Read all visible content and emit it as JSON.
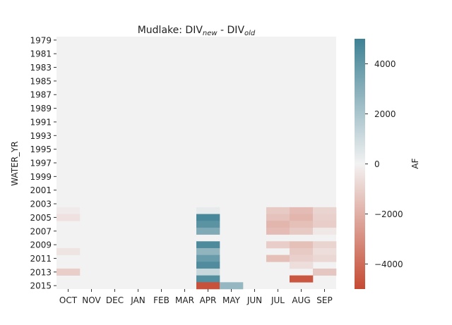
{
  "chart_data": {
    "type": "heatmap",
    "title": {
      "prefix": "Mudlake: DIV",
      "sub1": "new",
      "middle": " - DIV",
      "sub2": "old"
    },
    "xlabel": "",
    "ylabel": "WATER_YR",
    "colorbar_label": "AF",
    "color_range": [
      -5000,
      5000
    ],
    "colorbar_ticks": [
      4000,
      2000,
      0,
      -2000,
      -4000
    ],
    "colorbar_tick_labels": [
      "4000",
      "2000",
      "0",
      "−2000",
      "−4000"
    ],
    "colors": {
      "negative": "#c54a32",
      "neutral": "#f2f2f2",
      "positive": "#3e8194",
      "background": "#f2f2f2"
    },
    "x_categories": [
      "OCT",
      "NOV",
      "DEC",
      "JAN",
      "FEB",
      "MAR",
      "APR",
      "MAY",
      "JUN",
      "JUL",
      "AUG",
      "SEP"
    ],
    "y_categories": [
      1979,
      1980,
      1981,
      1982,
      1983,
      1984,
      1985,
      1986,
      1987,
      1988,
      1989,
      1990,
      1991,
      1992,
      1993,
      1994,
      1995,
      1996,
      1997,
      1998,
      1999,
      2000,
      2001,
      2002,
      2003,
      2004,
      2005,
      2006,
      2007,
      2008,
      2009,
      2010,
      2011,
      2012,
      2013,
      2014,
      2015
    ],
    "y_tick_labels": [
      "1979",
      "1981",
      "1983",
      "1985",
      "1987",
      "1989",
      "1991",
      "1993",
      "1995",
      "1997",
      "1999",
      "2001",
      "2003",
      "2005",
      "2007",
      "2009",
      "2011",
      "2013",
      "2015"
    ],
    "values": [
      [
        0,
        0,
        0,
        0,
        0,
        0,
        0,
        0,
        0,
        0,
        0,
        0
      ],
      [
        0,
        0,
        0,
        0,
        0,
        0,
        0,
        0,
        0,
        0,
        0,
        0
      ],
      [
        0,
        0,
        0,
        0,
        0,
        0,
        0,
        0,
        0,
        0,
        0,
        0
      ],
      [
        0,
        0,
        0,
        0,
        0,
        0,
        0,
        0,
        0,
        0,
        0,
        0
      ],
      [
        0,
        0,
        0,
        0,
        0,
        0,
        0,
        0,
        0,
        0,
        0,
        0
      ],
      [
        0,
        0,
        0,
        0,
        0,
        0,
        0,
        0,
        0,
        0,
        0,
        0
      ],
      [
        0,
        0,
        0,
        0,
        0,
        0,
        0,
        0,
        0,
        0,
        0,
        0
      ],
      [
        0,
        0,
        0,
        0,
        0,
        0,
        0,
        0,
        0,
        0,
        0,
        0
      ],
      [
        0,
        0,
        0,
        0,
        0,
        0,
        0,
        0,
        0,
        0,
        0,
        0
      ],
      [
        0,
        0,
        0,
        0,
        0,
        0,
        0,
        0,
        0,
        0,
        0,
        0
      ],
      [
        0,
        0,
        0,
        0,
        0,
        0,
        0,
        0,
        0,
        0,
        0,
        0
      ],
      [
        0,
        0,
        0,
        0,
        0,
        0,
        0,
        0,
        0,
        0,
        0,
        0
      ],
      [
        0,
        0,
        0,
        0,
        0,
        0,
        0,
        0,
        0,
        0,
        0,
        0
      ],
      [
        0,
        0,
        0,
        0,
        0,
        0,
        0,
        0,
        0,
        0,
        0,
        0
      ],
      [
        0,
        0,
        0,
        0,
        0,
        0,
        0,
        0,
        0,
        0,
        0,
        0
      ],
      [
        0,
        0,
        0,
        0,
        0,
        0,
        0,
        0,
        0,
        0,
        0,
        0
      ],
      [
        0,
        0,
        0,
        0,
        0,
        0,
        0,
        0,
        0,
        0,
        0,
        0
      ],
      [
        0,
        0,
        0,
        0,
        0,
        0,
        0,
        0,
        0,
        0,
        0,
        0
      ],
      [
        0,
        0,
        0,
        0,
        0,
        0,
        0,
        0,
        0,
        0,
        0,
        0
      ],
      [
        0,
        0,
        0,
        0,
        0,
        0,
        0,
        0,
        0,
        0,
        0,
        0
      ],
      [
        0,
        0,
        0,
        0,
        0,
        0,
        0,
        0,
        0,
        0,
        0,
        0
      ],
      [
        0,
        0,
        0,
        0,
        0,
        0,
        0,
        0,
        0,
        0,
        0,
        0
      ],
      [
        0,
        0,
        0,
        0,
        0,
        0,
        0,
        0,
        0,
        0,
        0,
        0
      ],
      [
        0,
        0,
        0,
        0,
        0,
        0,
        0,
        0,
        0,
        0,
        0,
        0
      ],
      [
        0,
        0,
        0,
        0,
        0,
        0,
        0,
        0,
        0,
        0,
        0,
        0
      ],
      [
        -200,
        0,
        0,
        0,
        0,
        0,
        300,
        0,
        0,
        -1200,
        -1600,
        -900
      ],
      [
        -500,
        0,
        0,
        0,
        0,
        0,
        4700,
        0,
        0,
        -1400,
        -1800,
        -1000
      ],
      [
        0,
        0,
        0,
        0,
        0,
        0,
        4200,
        0,
        0,
        -1800,
        -1500,
        -1100
      ],
      [
        0,
        0,
        0,
        0,
        0,
        0,
        3200,
        0,
        0,
        -1600,
        -1200,
        -300
      ],
      [
        0,
        0,
        0,
        0,
        0,
        0,
        0,
        0,
        0,
        0,
        0,
        0
      ],
      [
        0,
        0,
        0,
        0,
        0,
        0,
        4600,
        0,
        0,
        -1100,
        -1500,
        -900
      ],
      [
        -400,
        0,
        0,
        0,
        0,
        0,
        2700,
        0,
        0,
        0,
        -1200,
        -600
      ],
      [
        0,
        0,
        0,
        0,
        0,
        0,
        3800,
        0,
        0,
        -1500,
        -1000,
        -800
      ],
      [
        0,
        0,
        0,
        0,
        0,
        0,
        4500,
        0,
        0,
        0,
        -600,
        0
      ],
      [
        -1100,
        0,
        0,
        0,
        0,
        0,
        1200,
        0,
        0,
        0,
        0,
        -1300
      ],
      [
        0,
        0,
        0,
        0,
        0,
        0,
        4400,
        0,
        0,
        0,
        -4600,
        0
      ],
      [
        0,
        0,
        0,
        0,
        0,
        0,
        -4800,
        2600,
        0,
        0,
        0,
        0
      ]
    ]
  }
}
